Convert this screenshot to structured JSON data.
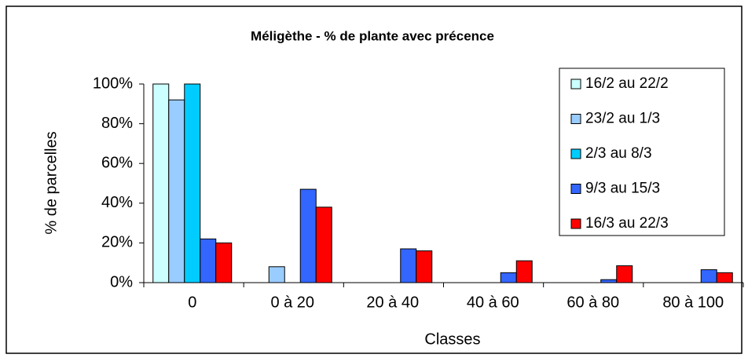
{
  "chart_data": {
    "type": "bar",
    "title": "Méligèthe - % de plante avec précence",
    "xlabel": "Classes",
    "ylabel": "% de parcelles",
    "categories": [
      "0",
      "0 à 20",
      "20 à 40",
      "40 à 60",
      "60 à 80",
      "80 à 100"
    ],
    "series": [
      {
        "name": "16/2 au 22/2",
        "color": "#ccffff",
        "values": [
          100,
          0,
          0,
          0,
          0,
          0
        ]
      },
      {
        "name": "23/2 au 1/3",
        "color": "#99ccff",
        "values": [
          92,
          8,
          0,
          0,
          0,
          0
        ]
      },
      {
        "name": "2/3 au 8/3",
        "color": "#00ccff",
        "values": [
          100,
          0,
          0,
          0,
          0,
          0
        ]
      },
      {
        "name": "9/3 au 15/3",
        "color": "#3366ff",
        "values": [
          22,
          47,
          17,
          5,
          1.5,
          6.5
        ]
      },
      {
        "name": "16/3 au 22/3",
        "color": "#ff0000",
        "values": [
          20,
          38,
          16,
          11,
          8.5,
          5
        ]
      }
    ],
    "ylim": [
      0,
      100
    ],
    "yticks": [
      {
        "value": 0,
        "label": "0%"
      },
      {
        "value": 20,
        "label": "20%"
      },
      {
        "value": 40,
        "label": "40%"
      },
      {
        "value": 60,
        "label": "60%"
      },
      {
        "value": 80,
        "label": "80%"
      },
      {
        "value": 100,
        "label": "100%"
      }
    ],
    "grid": false,
    "legend": "upper right"
  }
}
